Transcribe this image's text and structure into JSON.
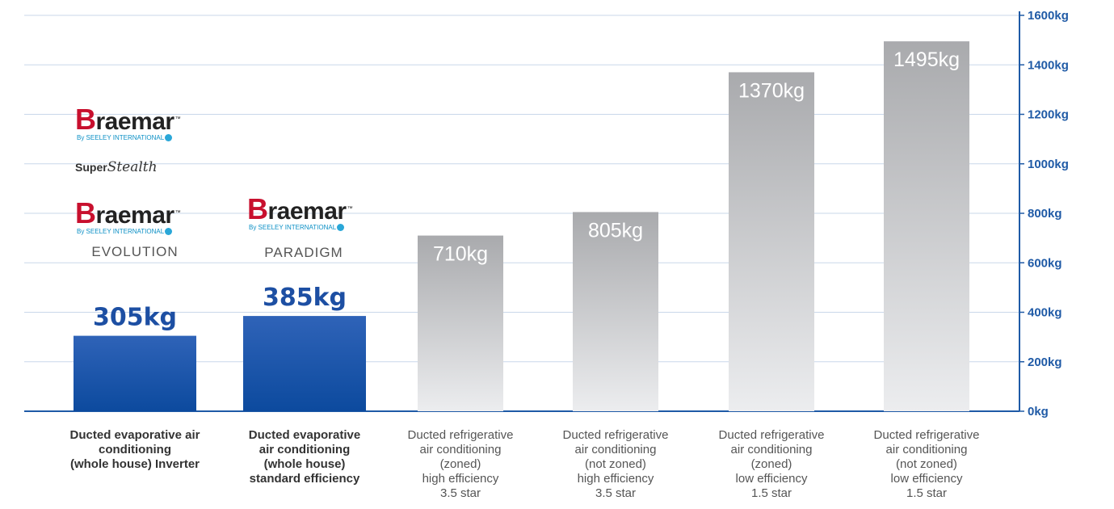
{
  "chart_data": {
    "type": "bar",
    "categories": [
      [
        "Ducted evaporative air",
        "conditioning",
        "(whole house) Inverter"
      ],
      [
        "Ducted evaporative",
        "air conditioning",
        "(whole house)",
        "standard efficiency"
      ],
      [
        "Ducted refrigerative",
        "air conditioning",
        "(zoned)",
        "high efficiency",
        "3.5 star"
      ],
      [
        "Ducted refrigerative",
        "air conditioning",
        "(not zoned)",
        "high efficiency",
        "3.5 star"
      ],
      [
        "Ducted refrigerative",
        "air conditioning",
        "(zoned)",
        "low efficiency",
        "1.5 star"
      ],
      [
        "Ducted refrigerative",
        "air conditioning",
        "(not zoned)",
        "low efficiency",
        "1.5 star"
      ]
    ],
    "values": [
      305,
      385,
      710,
      805,
      1370,
      1495
    ],
    "value_labels": [
      "305kg",
      "385kg",
      "710kg",
      "805kg",
      "1370kg",
      "1495kg"
    ],
    "highlighted": [
      true,
      true,
      false,
      false,
      false,
      false
    ],
    "y_ticks": [
      "0kg",
      "200kg",
      "400kg",
      "600kg",
      "800kg",
      "1000kg",
      "1200kg",
      "1400kg",
      "1600kg"
    ],
    "ylim": [
      0,
      1600
    ],
    "grid": true,
    "y_axis_side": "right",
    "colors": {
      "highlight": "#1d4fa3",
      "gray_top": "#a9aaad",
      "gray_bottom": "#ecedef",
      "axis": "#1f5aa6",
      "grid": "#c9d7ea"
    }
  },
  "brands": {
    "braemar_wordmark": "Braemar",
    "by_seeley": "By SEELEY INTERNATIONAL",
    "super_word": "Super",
    "stealth_word": "Stealth",
    "evolution": "EVOLUTION",
    "paradigm": "PARADIGM"
  }
}
